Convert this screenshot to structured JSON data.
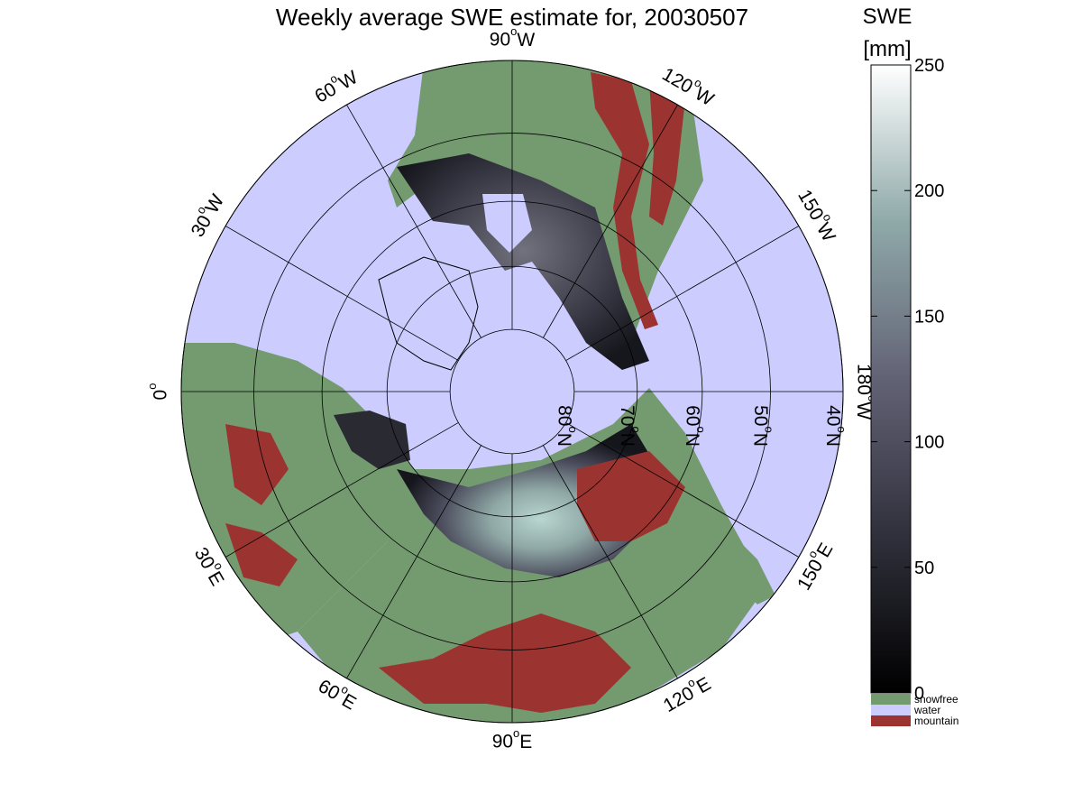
{
  "title": "Weekly average SWE estimate for, 20030507",
  "colorbar": {
    "title_line1": "SWE",
    "title_line2": "[mm]",
    "ticks": [
      "250",
      "200",
      "150",
      "100",
      "50",
      "0"
    ],
    "tick_values": [
      250,
      200,
      150,
      100,
      50,
      0
    ],
    "range": [
      0,
      250
    ],
    "categories": [
      {
        "label": "snowfree",
        "color": "#749a6f"
      },
      {
        "label": "water",
        "color": "#ccccff"
      },
      {
        "label": "mountain",
        "color": "#9b3431"
      }
    ]
  },
  "map": {
    "projection": "north polar stereographic",
    "ocean_color": "#ccccff",
    "land_color": "#749a6f",
    "mountain_color": "#9b3431",
    "longitudes": [
      {
        "text": "90",
        "suffix": "W",
        "deg": 90
      },
      {
        "text": "120",
        "suffix": "W",
        "deg": 120
      },
      {
        "text": "150",
        "suffix": "W",
        "deg": 150
      },
      {
        "text": "180",
        "suffix": "W",
        "deg": 180
      },
      {
        "text": "150",
        "suffix": "E",
        "deg": 210
      },
      {
        "text": "120",
        "suffix": "E",
        "deg": 240
      },
      {
        "text": "90",
        "suffix": "E",
        "deg": 270
      },
      {
        "text": "60",
        "suffix": "E",
        "deg": 300
      },
      {
        "text": "30",
        "suffix": "E",
        "deg": 330
      },
      {
        "text": "0",
        "suffix": "",
        "deg": 0
      },
      {
        "text": "30",
        "suffix": "W",
        "deg": 30
      },
      {
        "text": "60",
        "suffix": "W",
        "deg": 60
      }
    ],
    "latitudes": [
      {
        "text": "80",
        "suffix": "N",
        "deg": 80
      },
      {
        "text": "70",
        "suffix": "N",
        "deg": 70
      },
      {
        "text": "60",
        "suffix": "N",
        "deg": 60
      },
      {
        "text": "50",
        "suffix": "N",
        "deg": 50
      },
      {
        "text": "40",
        "suffix": "N",
        "deg": 40
      }
    ]
  }
}
